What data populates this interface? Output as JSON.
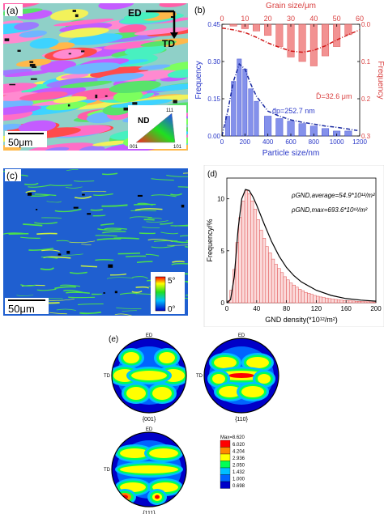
{
  "panel_a": {
    "label": "(a)",
    "ed": "ED",
    "td": "TD",
    "scale": "50μm",
    "legend": {
      "title": "ND",
      "t111": "111",
      "t001": "001",
      "t101": "101"
    }
  },
  "panel_c": {
    "label": "(c)",
    "scale": "50μm",
    "colorbar": {
      "max": "5°",
      "min": "0°"
    }
  },
  "panel_e": {
    "label": "(e)",
    "figures": [
      {
        "name": "{001}",
        "ed": "ED",
        "td": "TD"
      },
      {
        "name": "{110}",
        "ed": "ED",
        "td": "TD"
      },
      {
        "name": "{111}",
        "ed": "ED",
        "td": "TD"
      }
    ],
    "legend_title": "Max=8.620",
    "legend_levels": [
      "6.020",
      "4.204",
      "2.936",
      "2.050",
      "1.432",
      "1.000",
      "0.698"
    ],
    "legend_colors": [
      "#ff0000",
      "#ff8800",
      "#ffff00",
      "#00ff55",
      "#00c0ff",
      "#0064ff",
      "#0000c8"
    ]
  },
  "chart_data": [
    {
      "type": "bar",
      "panel": "(b)",
      "top_axis_label": "Grain size/μm",
      "xlabel": "Particle size/nm",
      "ylabel_left": "Frequency",
      "ylabel_right": "Frequency",
      "annotation_particle": "d̄p=252.7 nm",
      "annotation_grain": "D̄=32.6 μm",
      "xlim": [
        0,
        1200
      ],
      "x_ticks": [
        "0",
        "200",
        "400",
        "600",
        "800",
        "1000",
        "1200"
      ],
      "ylim_left": [
        0,
        0.45
      ],
      "y_ticks_left": [
        "0.00",
        "0.15",
        "0.30",
        "0.45"
      ],
      "top_xlim": [
        0,
        60
      ],
      "top_ticks": [
        "0",
        "10",
        "20",
        "30",
        "40",
        "50",
        "60"
      ],
      "ylim_right_inverted": [
        0,
        0.3
      ],
      "y_ticks_right": [
        "0.0",
        "0.1",
        "0.2",
        "0.3"
      ],
      "series": [
        {
          "name": "particle",
          "color": "#2a38c8",
          "x": [
            50,
            100,
            150,
            200,
            250,
            300,
            400,
            500,
            600,
            700,
            800,
            900,
            1000,
            1100
          ],
          "values": [
            0.08,
            0.22,
            0.31,
            0.27,
            0.19,
            0.14,
            0.08,
            0.07,
            0.06,
            0.05,
            0.04,
            0.03,
            0.02,
            0.02
          ],
          "fit_x": [
            0,
            50,
            100,
            150,
            200,
            250,
            300,
            400,
            500,
            600,
            700,
            800,
            900,
            1000,
            1100,
            1180
          ],
          "fit_y": [
            0.0,
            0.1,
            0.22,
            0.29,
            0.27,
            0.21,
            0.16,
            0.1,
            0.08,
            0.065,
            0.055,
            0.048,
            0.04,
            0.035,
            0.028,
            0.022
          ]
        },
        {
          "name": "grain",
          "color": "#d94040",
          "x": [
            5,
            10,
            15,
            20,
            25,
            30,
            35,
            40,
            45,
            50,
            55
          ],
          "values": [
            0.005,
            0.012,
            0.018,
            0.03,
            0.06,
            0.088,
            0.1,
            0.112,
            0.085,
            0.06,
            0.028
          ],
          "fit_x": [
            0,
            5,
            10,
            15,
            20,
            25,
            30,
            35,
            40,
            45,
            50,
            55,
            60
          ],
          "fit_y": [
            0.01,
            0.015,
            0.022,
            0.035,
            0.05,
            0.062,
            0.072,
            0.075,
            0.07,
            0.058,
            0.042,
            0.028,
            0.015
          ]
        }
      ]
    },
    {
      "type": "bar",
      "panel": "(d)",
      "xlabel": "GND density(*10¹²/m²)",
      "ylabel": "Frequency/%",
      "annotation_avg": "ρGND,average=54.9*10¹²/m²",
      "annotation_max": "ρGND,max=693.6*10¹²/m²",
      "xlim": [
        0,
        200
      ],
      "x_ticks": [
        "0",
        "40",
        "80",
        "120",
        "160",
        "200"
      ],
      "ylim": [
        0,
        12
      ],
      "y_ticks": [
        "0",
        "5",
        "10"
      ],
      "bin_width": 4,
      "bins_start": [
        0,
        4,
        8,
        12,
        16,
        20,
        24,
        28,
        32,
        36,
        40,
        44,
        48,
        52,
        56,
        60,
        64,
        68,
        72,
        76,
        80,
        84,
        88,
        92,
        96,
        100,
        104,
        108,
        112,
        116,
        120,
        124,
        128,
        132,
        136,
        140,
        144,
        148,
        152,
        156,
        160,
        164,
        168,
        172,
        176,
        180,
        184,
        188,
        192,
        196
      ],
      "values": [
        0.2,
        1.2,
        3.2,
        5.8,
        8.2,
        9.8,
        10.8,
        10.5,
        9.8,
        9.0,
        8.0,
        7.0,
        6.2,
        5.4,
        4.8,
        4.2,
        3.7,
        3.3,
        2.9,
        2.5,
        2.2,
        1.9,
        1.7,
        1.5,
        1.3,
        1.15,
        1.0,
        0.9,
        0.8,
        0.7,
        0.62,
        0.55,
        0.5,
        0.45,
        0.4,
        0.35,
        0.32,
        0.28,
        0.25,
        0.22,
        0.2,
        0.18,
        0.16,
        0.14,
        0.13,
        0.12,
        0.1,
        0.09,
        0.08,
        0.07
      ],
      "fit_x": [
        0,
        5,
        10,
        15,
        20,
        25,
        30,
        35,
        40,
        50,
        60,
        70,
        80,
        90,
        100,
        120,
        140,
        160,
        180,
        200
      ],
      "fit_y": [
        0,
        0.3,
        2.5,
        7.0,
        10.0,
        10.9,
        10.8,
        10.2,
        9.4,
        7.6,
        5.9,
        4.5,
        3.4,
        2.6,
        2.0,
        1.2,
        0.7,
        0.4,
        0.25,
        0.15
      ],
      "bar_color": "#e05050",
      "fit_color": "#000000"
    }
  ]
}
